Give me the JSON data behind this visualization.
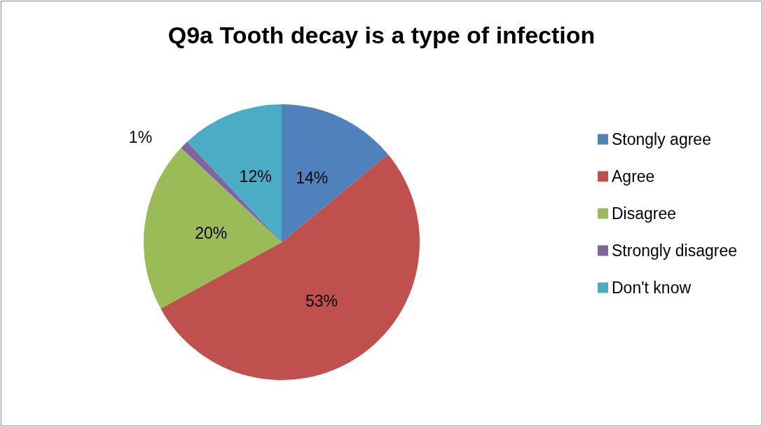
{
  "chart_data": {
    "type": "pie",
    "title": "Q9a Tooth decay is a type of infection",
    "categories": [
      "Stongly agree",
      "Agree",
      "Disagree",
      "Strongly disagree",
      "Don't know"
    ],
    "values": [
      14,
      53,
      20,
      1,
      12
    ],
    "value_labels": [
      "14%",
      "53%",
      "20%",
      "1%",
      "12%"
    ],
    "colors": [
      "#4f81bd",
      "#c0504d",
      "#9bbb59",
      "#8064a2",
      "#4bacc6"
    ],
    "legend": "right"
  }
}
